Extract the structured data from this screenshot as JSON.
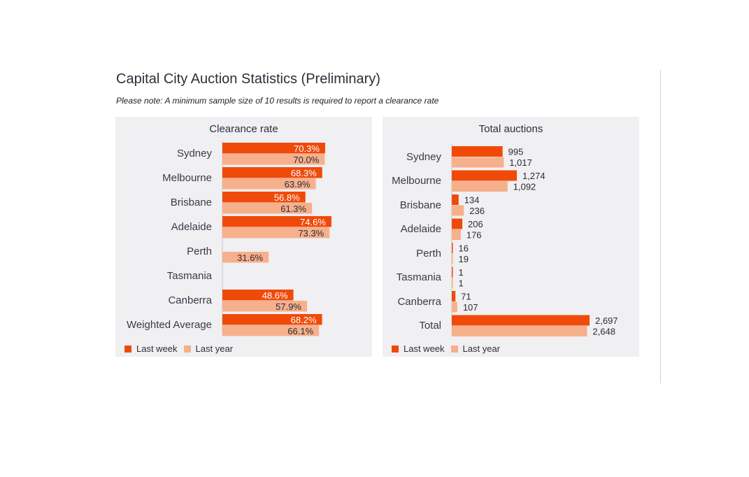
{
  "page": {
    "title": "Capital City Auction Statistics (Preliminary)",
    "note": "Please note: A minimum sample size of 10 results is required to report a clearance rate"
  },
  "legend": {
    "last_week": "Last week",
    "last_year": "Last year"
  },
  "colors": {
    "last_week": "#f04a0a",
    "last_year": "#f6b08c",
    "panel_bg": "#f0eff1"
  },
  "chart_data": [
    {
      "type": "bar",
      "orientation": "horizontal",
      "title": "Clearance rate",
      "categories": [
        "Sydney",
        "Melbourne",
        "Brisbane",
        "Adelaide",
        "Perth",
        "Tasmania",
        "Canberra",
        "Weighted Average"
      ],
      "series": [
        {
          "name": "Last week",
          "values": [
            70.3,
            68.3,
            56.8,
            74.6,
            null,
            null,
            48.6,
            68.2
          ],
          "labels": [
            "70.3%",
            "68.3%",
            "56.8%",
            "74.6%",
            "",
            "",
            "48.6%",
            "68.2%"
          ]
        },
        {
          "name": "Last year",
          "values": [
            70.0,
            63.9,
            61.3,
            73.3,
            31.6,
            null,
            57.9,
            66.1
          ],
          "labels": [
            "70.0%",
            "63.9%",
            "61.3%",
            "73.3%",
            "31.6%",
            "",
            "57.9%",
            "66.1%"
          ]
        }
      ],
      "xlim": [
        0,
        100
      ],
      "legend_position": "bottom-left"
    },
    {
      "type": "bar",
      "orientation": "horizontal",
      "title": "Total auctions",
      "categories": [
        "Sydney",
        "Melbourne",
        "Brisbane",
        "Adelaide",
        "Perth",
        "Tasmania",
        "Canberra",
        "Total"
      ],
      "series": [
        {
          "name": "Last week",
          "values": [
            995,
            1274,
            134,
            206,
            16,
            1,
            71,
            2697
          ],
          "labels": [
            "995",
            "1,274",
            "134",
            "206",
            "16",
            "1",
            "71",
            "2,697"
          ]
        },
        {
          "name": "Last year",
          "values": [
            1017,
            1092,
            236,
            176,
            19,
            1,
            107,
            2648
          ],
          "labels": [
            "1,017",
            "1,092",
            "236",
            "176",
            "19",
            "1",
            "107",
            "2,648"
          ]
        }
      ],
      "xlim": [
        0,
        2697
      ],
      "legend_position": "bottom-left"
    }
  ]
}
